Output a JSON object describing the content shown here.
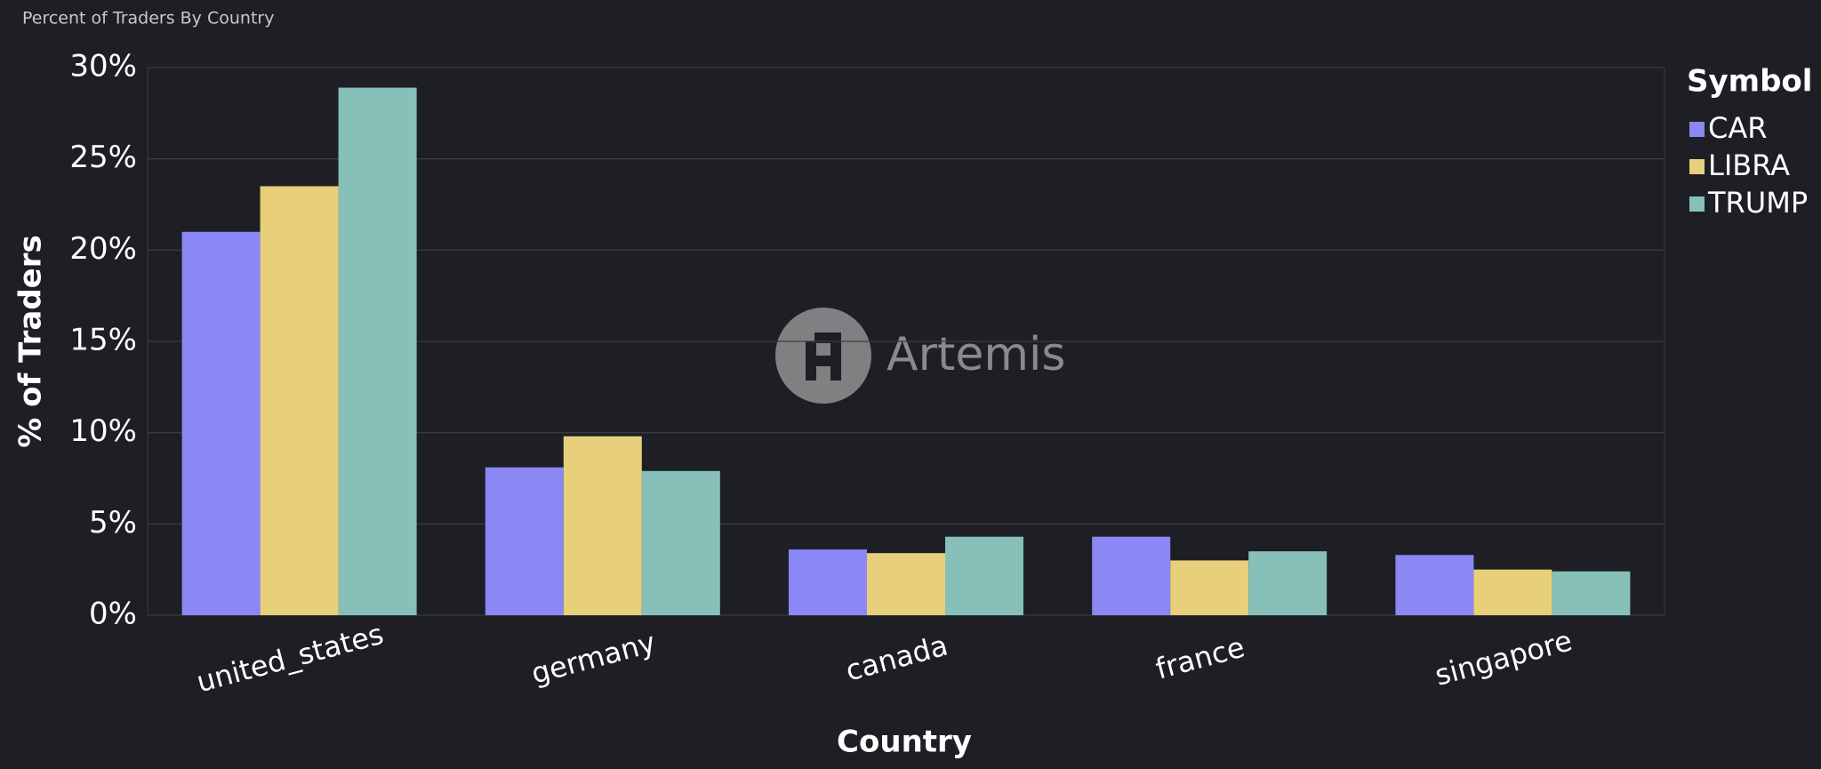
{
  "chart_data": {
    "type": "bar",
    "title": "Percent of Traders By Country",
    "watermark": "Artemis",
    "x_label": "Country",
    "y_label": "% of Traders",
    "legend_title": "Symbol",
    "categories": [
      "united_states",
      "germany",
      "canada",
      "france",
      "singapore"
    ],
    "series": [
      {
        "name": "CAR",
        "color": "#8b87f5",
        "values": [
          21.0,
          8.1,
          3.6,
          4.3,
          3.3
        ]
      },
      {
        "name": "LIBRA",
        "color": "#e8cf7a",
        "values": [
          23.5,
          9.8,
          3.4,
          3.0,
          2.5
        ]
      },
      {
        "name": "TRUMP",
        "color": "#86c0b8",
        "values": [
          28.9,
          7.9,
          4.3,
          3.5,
          2.4
        ]
      }
    ],
    "ylim": [
      0,
      30
    ],
    "yticks": [
      {
        "value": 0,
        "label": "0%"
      },
      {
        "value": 5,
        "label": "5%"
      },
      {
        "value": 10,
        "label": "10%"
      },
      {
        "value": 15,
        "label": "15%"
      },
      {
        "value": 20,
        "label": "20%"
      },
      {
        "value": 25,
        "label": "25%"
      },
      {
        "value": 30,
        "label": "30%"
      }
    ],
    "grid": true,
    "legend": "right"
  }
}
